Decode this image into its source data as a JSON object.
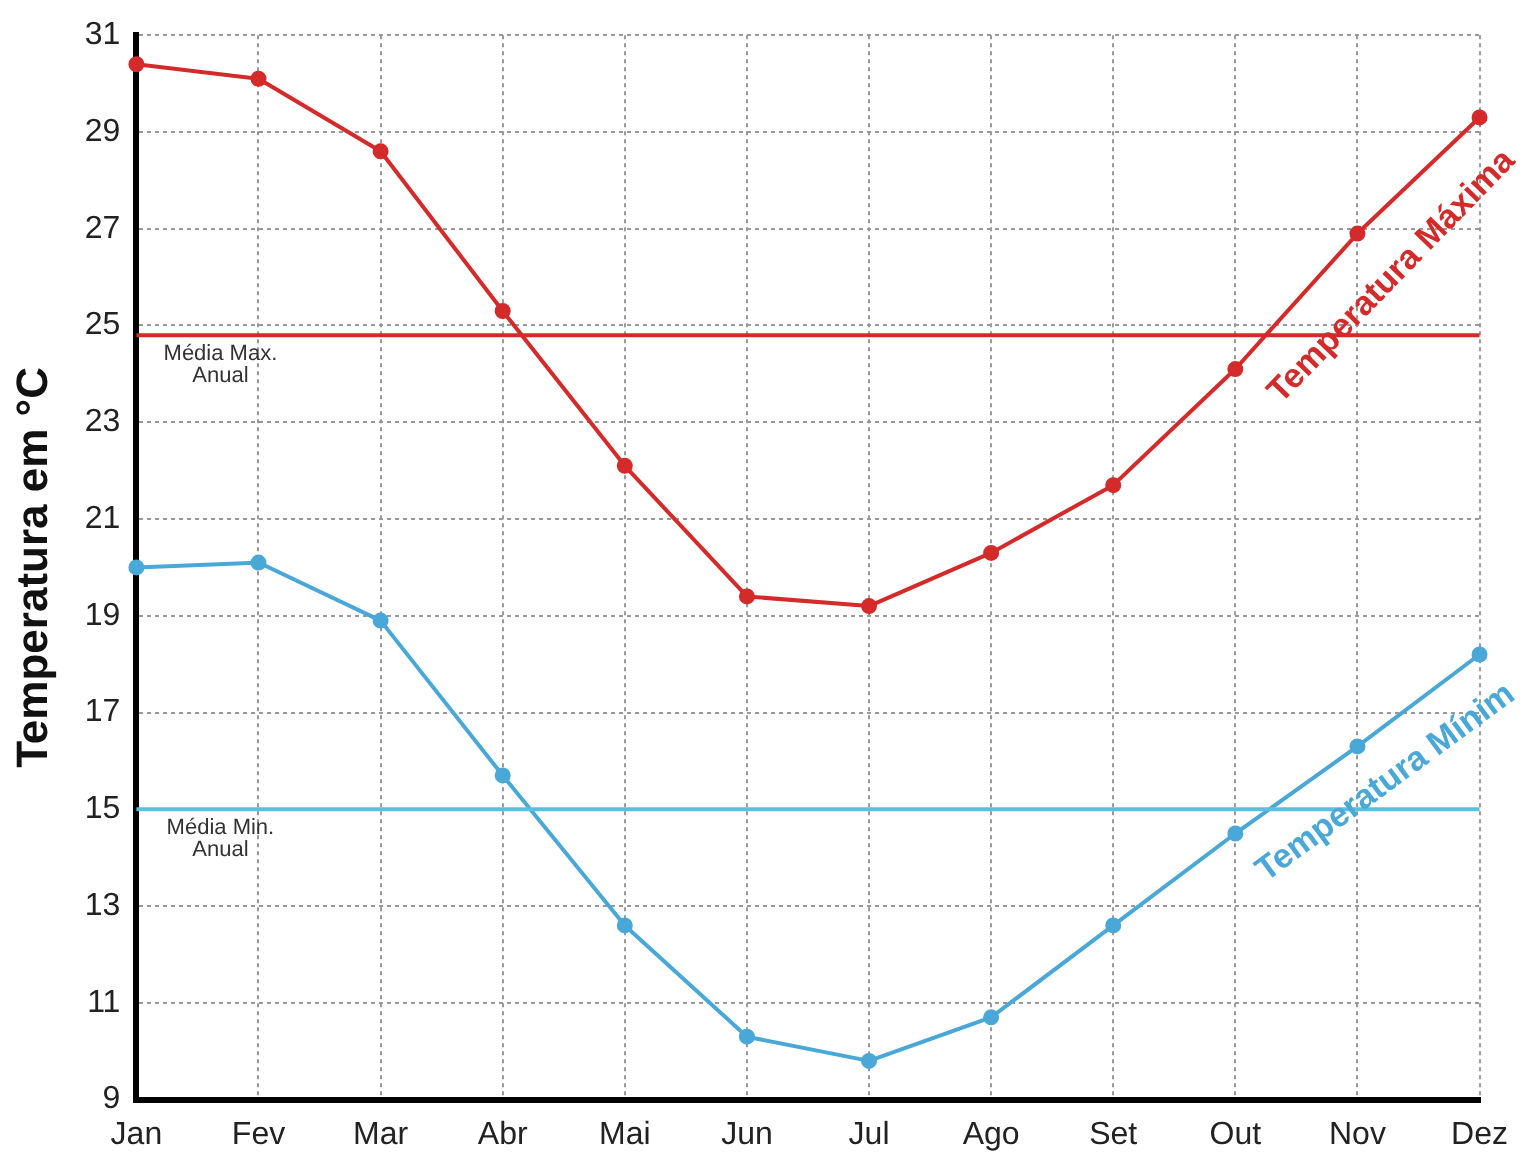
{
  "chart_data": {
    "type": "line",
    "ylabel": "Temperatura em °C",
    "categories": [
      "Jan",
      "Fev",
      "Mar",
      "Abr",
      "Mai",
      "Jun",
      "Jul",
      "Ago",
      "Set",
      "Out",
      "Nov",
      "Dez"
    ],
    "series": [
      {
        "name": "Temperatura Máxima",
        "color": "#d42a2a",
        "values": [
          30.4,
          30.1,
          28.6,
          25.3,
          22.1,
          19.4,
          19.2,
          20.3,
          21.7,
          24.1,
          26.9,
          29.3
        ]
      },
      {
        "name": "Temperatura Mínim",
        "color": "#4aa8d8",
        "values": [
          20.0,
          20.1,
          18.9,
          15.7,
          12.6,
          10.3,
          9.8,
          10.7,
          12.6,
          14.5,
          16.3,
          18.2
        ]
      }
    ],
    "ylim": [
      9,
      31
    ],
    "yticks": [
      9,
      11,
      13,
      15,
      17,
      19,
      21,
      23,
      25,
      27,
      29,
      31
    ],
    "ref_lines": [
      {
        "axis": "y",
        "value": 24.8,
        "label": "Média Max.\nAnual",
        "color": "#d42a2a"
      },
      {
        "axis": "y",
        "value": 15.0,
        "label": "Média Min.\nAnual",
        "color": "#5bc0e0"
      }
    ],
    "grid": true,
    "legend": false,
    "marker": "circle",
    "line_style": "solid"
  }
}
